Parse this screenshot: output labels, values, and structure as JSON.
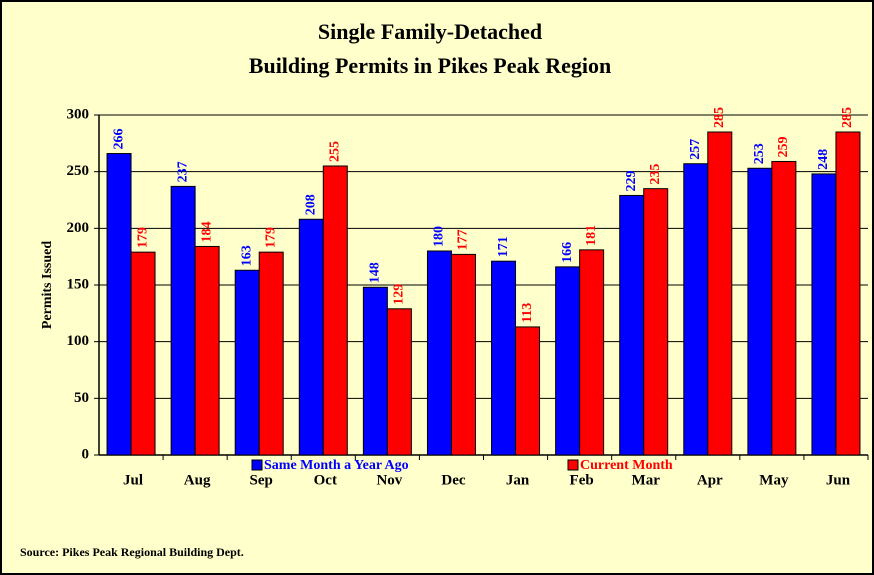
{
  "chart_data": {
    "type": "bar",
    "title": [
      "Single Family-Detached",
      "Building Permits in Pikes Peak Region"
    ],
    "y_label": "Permits Issued",
    "source": "Source: Pikes Peak Regional Building Dept.",
    "categories": [
      "Jul",
      "Aug",
      "Sep",
      "Oct",
      "Nov",
      "Dec",
      "Jan",
      "Feb",
      "Mar",
      "Apr",
      "May",
      "Jun"
    ],
    "series": [
      {
        "name": "Same Month a Year Ago",
        "color": "#0000ff",
        "values": [
          266,
          237,
          163,
          208,
          148,
          180,
          171,
          166,
          229,
          257,
          253,
          248
        ]
      },
      {
        "name": "Current Month",
        "color": "#ff0000",
        "values": [
          179,
          184,
          179,
          255,
          129,
          177,
          113,
          181,
          235,
          285,
          259,
          285
        ]
      }
    ],
    "ylim": [
      0,
      300
    ],
    "yticks": [
      0,
      50,
      100,
      150,
      200,
      250,
      300
    ],
    "grid": true,
    "legend": "bottom"
  }
}
